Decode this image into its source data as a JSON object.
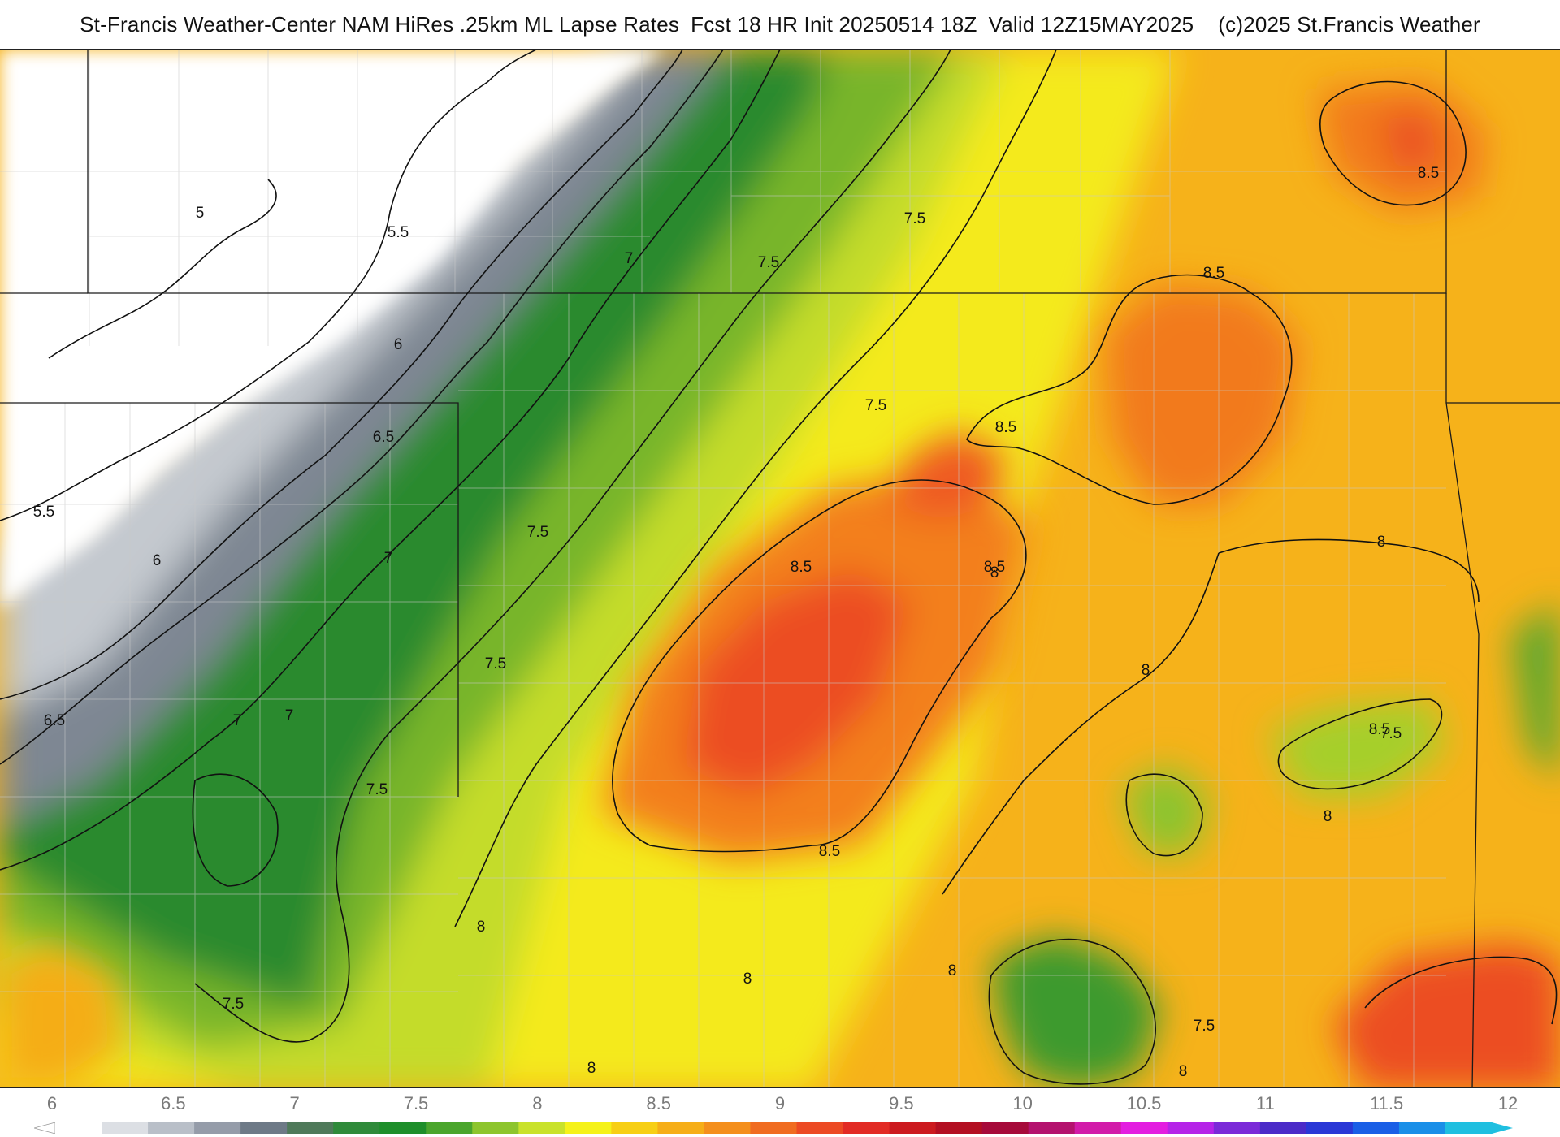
{
  "title": {
    "product": "St-Francis Weather-Center NAM HiRes .25km ML Lapse Rates",
    "forecast": "Fcst 18 HR Init 20250514 18Z",
    "valid": "Valid 12Z15MAY2025",
    "copyright": "(c)2025 St.Francis Weather"
  },
  "map": {
    "field": "ML Lapse Rates",
    "contour_labels": [
      "5",
      "5.5",
      "5.5",
      "6",
      "6",
      "6.5",
      "6.5",
      "7",
      "7",
      "7",
      "7",
      "7.5",
      "7.5",
      "7.5",
      "7.5",
      "7.5",
      "7.5",
      "7.5",
      "7.5",
      "7.5",
      "8",
      "8",
      "8",
      "8",
      "8",
      "8",
      "8",
      "8",
      "8",
      "8.5",
      "8.5",
      "8.5",
      "8.5",
      "8.5",
      "8.5",
      "8.5"
    ]
  },
  "legend": {
    "ticks": [
      "6",
      "6.5",
      "7",
      "7.5",
      "8",
      "8.5",
      "9",
      "9.5",
      "10",
      "10.5",
      "11",
      "11.5",
      "12"
    ],
    "colors": [
      "#ffffff",
      "#dcdfe4",
      "#b9bfc8",
      "#959ca9",
      "#6e7a87",
      "#4f7a5a",
      "#2f8a3a",
      "#1e8e2a",
      "#4aa52c",
      "#8dc52d",
      "#c9e22b",
      "#f5f21a",
      "#f7cf15",
      "#f6ae18",
      "#f48f1d",
      "#f06c21",
      "#ec4a24",
      "#e22b25",
      "#cc1a1f",
      "#b30f22",
      "#a60a3a",
      "#b4126e",
      "#d21ba9",
      "#e31ee0",
      "#b524e8",
      "#7b2ad8",
      "#4b2bc8",
      "#2a38d6",
      "#1a5fe6",
      "#1a8fe8",
      "#1fbfe0"
    ]
  }
}
